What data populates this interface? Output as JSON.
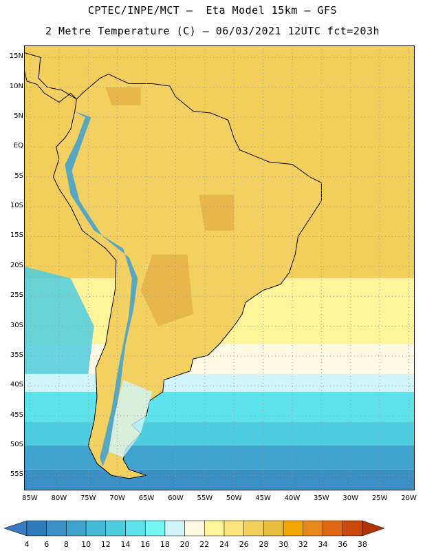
{
  "header": {
    "line1": "CPTEC/INPE/MCT –  Eta Model 15km – GFS",
    "line2": "2 Metre Temperature (C) – 06/03/2021 12UTC fct=203h"
  },
  "map": {
    "lat_labels": [
      "15N",
      "10N",
      "5N",
      "EQ",
      "5S",
      "10S",
      "15S",
      "20S",
      "25S",
      "30S",
      "35S",
      "40S",
      "45S",
      "50S",
      "55S"
    ],
    "lon_labels": [
      "85W",
      "80W",
      "75W",
      "70W",
      "65W",
      "60W",
      "55W",
      "50W",
      "45W",
      "40W",
      "35W",
      "30W",
      "25W",
      "20W"
    ],
    "lat_range": [
      17,
      -57.5
    ],
    "lon_range": [
      -86,
      -19
    ],
    "ocean_bands": [
      {
        "lat_from": 17,
        "lat_to": 8,
        "value": 27
      },
      {
        "lat_from": 8,
        "lat_to": -22,
        "value": 27
      },
      {
        "lat_from": -22,
        "lat_to": -33,
        "value": 23
      },
      {
        "lat_from": -33,
        "lat_to": -38,
        "value": 21
      },
      {
        "lat_from": -38,
        "lat_to": -41,
        "value": 19
      },
      {
        "lat_from": -41,
        "lat_to": -46,
        "value": 15
      },
      {
        "lat_from": -46,
        "lat_to": -50,
        "value": 13
      },
      {
        "lat_from": -50,
        "lat_to": -54,
        "value": 9
      },
      {
        "lat_from": -54,
        "lat_to": -57.5,
        "value": 7
      }
    ],
    "pacific_cool_tongue_value": 13,
    "colors": {
      "land_warm": "#f2d062",
      "land_hot": "#e6b34a",
      "andes_cold": "#3ba0d0",
      "border": "#000000",
      "grid": "#999999"
    }
  },
  "colorbar": {
    "levels": [
      "4",
      "6",
      "8",
      "10",
      "12",
      "14",
      "16",
      "18",
      "20",
      "22",
      "24",
      "26",
      "28",
      "30",
      "32",
      "34",
      "36",
      "38"
    ],
    "colors": [
      "#3a78c1",
      "#2f7ab8",
      "#3a8fc4",
      "#3fa3cd",
      "#45b8d6",
      "#4fcde0",
      "#5ee3ec",
      "#72f5f3",
      "#d0f5fb",
      "#fff8e2",
      "#fff49a",
      "#fbe37c",
      "#f2cf5a",
      "#e9bd3f",
      "#f0a500",
      "#e8871c",
      "#e06712",
      "#c94708",
      "#b13404"
    ]
  }
}
